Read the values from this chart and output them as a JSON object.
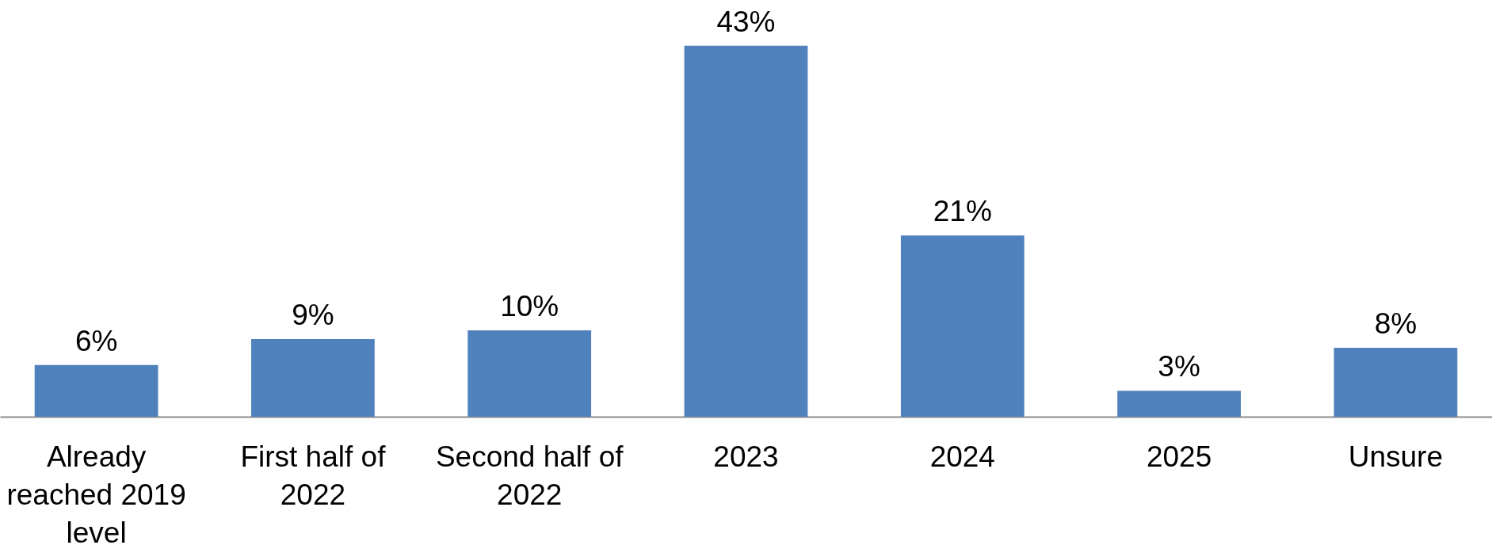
{
  "chart_data": {
    "type": "bar",
    "categories": [
      "Already reached 2019 level",
      "First half of 2022",
      "Second half of 2022",
      "2023",
      "2024",
      "2025",
      "Unsure"
    ],
    "values": [
      6,
      9,
      10,
      43,
      21,
      3,
      8
    ],
    "value_labels": [
      "6%",
      "9%",
      "10%",
      "43%",
      "21%",
      "3%",
      "8%"
    ],
    "color": "#4f81bd",
    "tick_labels": "x"
  }
}
